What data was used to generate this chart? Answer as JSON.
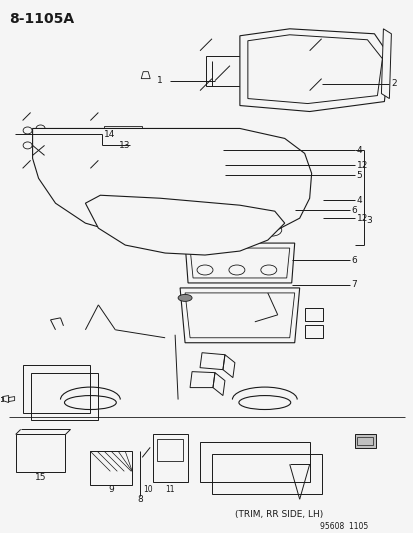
{
  "title": "8-1105A",
  "bg": "#f5f5f5",
  "lc": "#1a1a1a",
  "footer": "95608  1105",
  "trim_label": "(TRIM, RR SIDE, LH)"
}
